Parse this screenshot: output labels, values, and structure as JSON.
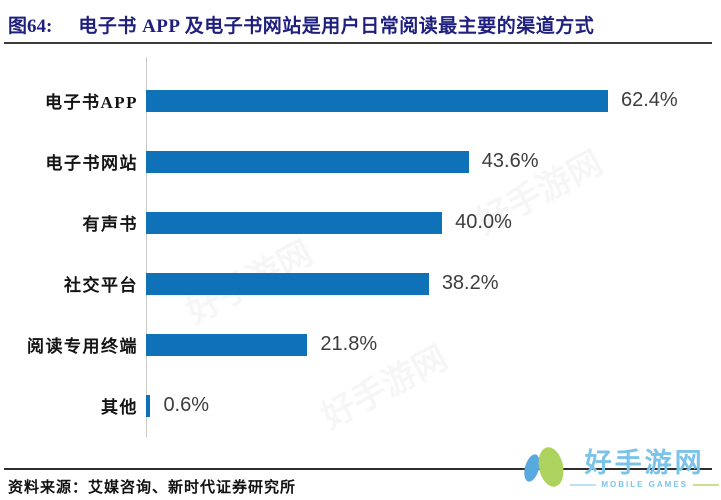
{
  "header": {
    "figure_label": "图64:",
    "title": "电子书 APP 及电子书网站是用户日常阅读最主要的渠道方式"
  },
  "chart_data": {
    "type": "bar",
    "orientation": "horizontal",
    "title": "电子书 APP 及电子书网站是用户日常阅读最主要的渠道方式",
    "categories": [
      "电子书APP",
      "电子书网站",
      "有声书",
      "社交平台",
      "阅读专用终端",
      "其他"
    ],
    "values": [
      62.4,
      43.6,
      40.0,
      38.2,
      21.8,
      0.6
    ],
    "value_labels": [
      "62.4%",
      "43.6%",
      "40.0%",
      "38.2%",
      "21.8%",
      "0.6%"
    ],
    "xlabel": "",
    "ylabel": "",
    "xlim": [
      0,
      70
    ],
    "grid": false,
    "legend": false,
    "bar_color": "#0f72b9",
    "value_label_color": "#3d3d3d",
    "category_label_color": "#141414",
    "axis_line_color": "#c9c9c9"
  },
  "footer": {
    "source": "资料来源：艾媒咨询、新时代证券研究所"
  },
  "watermark": {
    "site_name": "好手游网",
    "subtitle": "MOBILE GAMES",
    "text_color": "#7cc3ea",
    "logo_blue": "#58a9de",
    "logo_green": "#aed25e",
    "dash_left_color": "#bfe0f2",
    "dash_right_color": "#c9e18e"
  },
  "colors": {
    "title": "#1f1f7e",
    "separator": "#3c3c3c"
  }
}
